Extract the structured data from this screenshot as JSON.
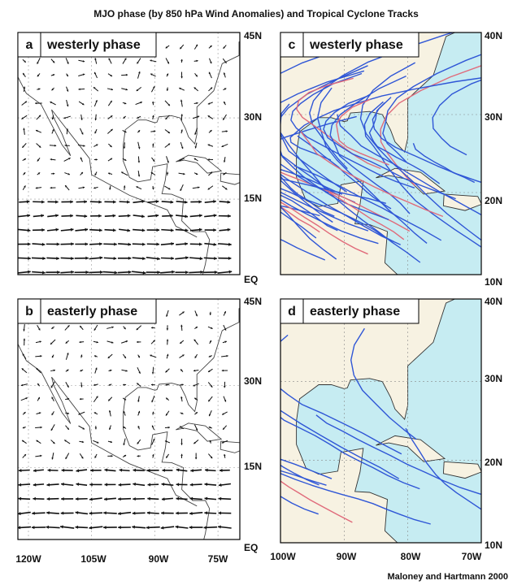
{
  "title": "MJO phase (by 850 hPa Wind Anomalies) and Tropical Cyclone Tracks",
  "panels": [
    {
      "letter": "a",
      "label": "westerly phase"
    },
    {
      "letter": "b",
      "label": "easterly phase"
    },
    {
      "letter": "c",
      "label": "westerly phase"
    },
    {
      "letter": "d",
      "label": "easterly phase"
    }
  ],
  "left_lat_labels": [
    "45N",
    "30N",
    "15N",
    "EQ"
  ],
  "right_lat_labels": [
    "40N",
    "30N",
    "20N",
    "10N"
  ],
  "left_lon_labels": [
    "120W",
    "105W",
    "90W",
    "75W"
  ],
  "right_lon_labels": [
    "100W",
    "90W",
    "80W",
    "70W"
  ],
  "credit": "Maloney and Hartmann 2000"
}
